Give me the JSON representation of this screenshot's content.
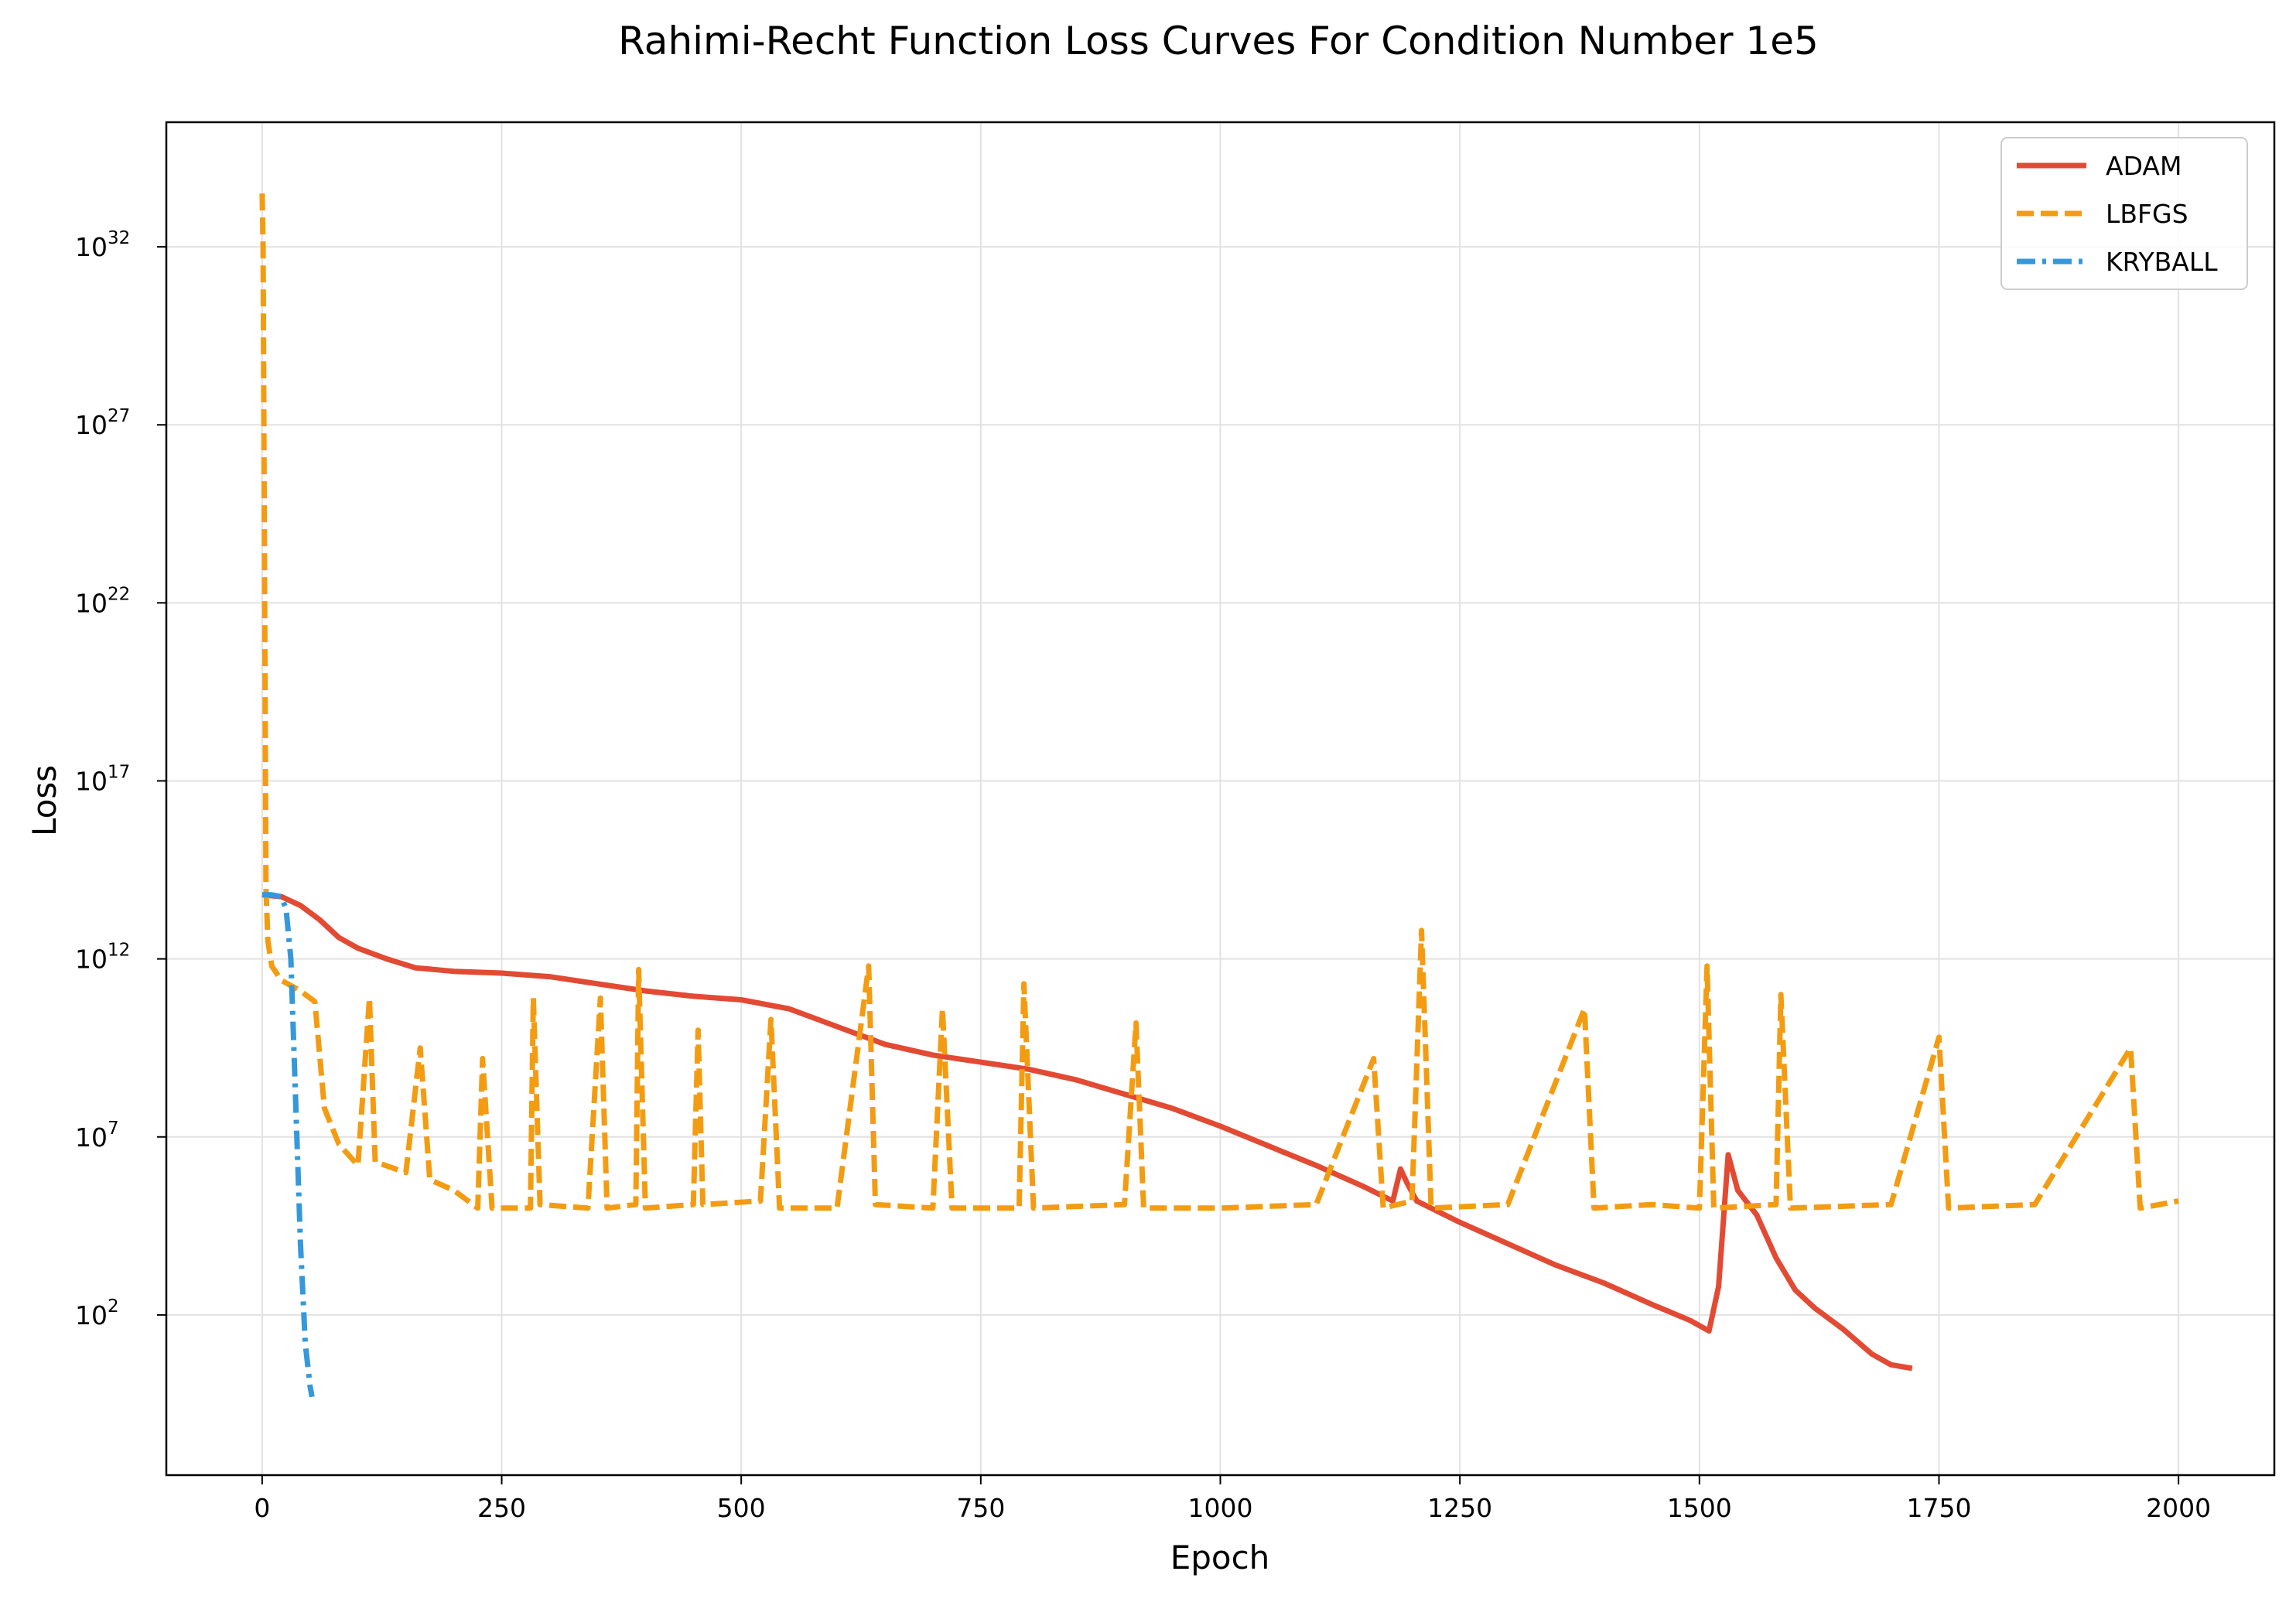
{
  "chart_data": {
    "type": "line",
    "title": "Rahimi-Recht Function Loss Curves For Condition Number 1e5",
    "xlabel": "Epoch",
    "ylabel": "Loss",
    "yscale": "log",
    "xlim": [
      -100,
      2100
    ],
    "ylim_exponent": [
      -2.5,
      35.5
    ],
    "x_ticks": [
      0,
      250,
      500,
      750,
      1000,
      1250,
      1500,
      1750,
      2000
    ],
    "y_ticks": [
      {
        "base": "10",
        "exp": "32",
        "value_exp": 32
      },
      {
        "base": "10",
        "exp": "27",
        "value_exp": 27
      },
      {
        "base": "10",
        "exp": "22",
        "value_exp": 22
      },
      {
        "base": "10",
        "exp": "17",
        "value_exp": 17
      },
      {
        "base": "10",
        "exp": "12",
        "value_exp": 12
      },
      {
        "base": "10",
        "exp": "7",
        "value_exp": 7
      },
      {
        "base": "10",
        "exp": "2",
        "value_exp": 2
      }
    ],
    "grid": true,
    "legend_position": "top-right",
    "series": [
      {
        "name": "ADAM",
        "color": "#e24a33",
        "dash": "solid",
        "log10_points": [
          [
            0,
            13.8
          ],
          [
            20,
            13.75
          ],
          [
            40,
            13.5
          ],
          [
            60,
            13.1
          ],
          [
            80,
            12.6
          ],
          [
            100,
            12.3
          ],
          [
            130,
            12.0
          ],
          [
            160,
            11.75
          ],
          [
            200,
            11.65
          ],
          [
            250,
            11.6
          ],
          [
            300,
            11.5
          ],
          [
            350,
            11.3
          ],
          [
            400,
            11.1
          ],
          [
            450,
            10.95
          ],
          [
            500,
            10.85
          ],
          [
            550,
            10.6
          ],
          [
            600,
            10.1
          ],
          [
            650,
            9.6
          ],
          [
            700,
            9.3
          ],
          [
            750,
            9.1
          ],
          [
            800,
            8.9
          ],
          [
            850,
            8.6
          ],
          [
            900,
            8.2
          ],
          [
            950,
            7.8
          ],
          [
            1000,
            7.3
          ],
          [
            1050,
            6.75
          ],
          [
            1100,
            6.2
          ],
          [
            1150,
            5.6
          ],
          [
            1180,
            5.2
          ],
          [
            1188,
            6.1
          ],
          [
            1195,
            5.7
          ],
          [
            1205,
            5.2
          ],
          [
            1250,
            4.6
          ],
          [
            1300,
            4.0
          ],
          [
            1350,
            3.4
          ],
          [
            1400,
            2.9
          ],
          [
            1450,
            2.3
          ],
          [
            1490,
            1.85
          ],
          [
            1510,
            1.55
          ],
          [
            1520,
            2.8
          ],
          [
            1530,
            6.5
          ],
          [
            1540,
            5.5
          ],
          [
            1560,
            4.8
          ],
          [
            1580,
            3.6
          ],
          [
            1600,
            2.7
          ],
          [
            1620,
            2.2
          ],
          [
            1650,
            1.6
          ],
          [
            1680,
            0.9
          ],
          [
            1700,
            0.6
          ],
          [
            1722,
            0.5
          ]
        ]
      },
      {
        "name": "LBFGS",
        "color": "#f39c12",
        "dash": "dashed",
        "log10_points": [
          [
            0,
            33.5
          ],
          [
            1,
            32
          ],
          [
            2,
            26
          ],
          [
            3,
            20
          ],
          [
            4,
            14
          ],
          [
            6,
            12.5
          ],
          [
            10,
            11.8
          ],
          [
            20,
            11.4
          ],
          [
            40,
            11.1
          ],
          [
            55,
            10.8
          ],
          [
            65,
            7.8
          ],
          [
            80,
            6.8
          ],
          [
            100,
            6.2
          ],
          [
            112,
            10.9
          ],
          [
            118,
            6.3
          ],
          [
            150,
            6.0
          ],
          [
            165,
            9.5
          ],
          [
            175,
            5.8
          ],
          [
            200,
            5.5
          ],
          [
            225,
            5.0
          ],
          [
            230,
            9.2
          ],
          [
            240,
            5.0
          ],
          [
            280,
            5.0
          ],
          [
            283,
            10.9
          ],
          [
            290,
            5.1
          ],
          [
            340,
            5.0
          ],
          [
            353,
            10.9
          ],
          [
            360,
            5.0
          ],
          [
            390,
            5.1
          ],
          [
            393,
            11.7
          ],
          [
            400,
            5.0
          ],
          [
            450,
            5.1
          ],
          [
            455,
            10.0
          ],
          [
            460,
            5.1
          ],
          [
            520,
            5.2
          ],
          [
            531,
            10.3
          ],
          [
            540,
            5.0
          ],
          [
            600,
            5.0
          ],
          [
            633,
            11.8
          ],
          [
            640,
            5.1
          ],
          [
            700,
            5.0
          ],
          [
            710,
            10.6
          ],
          [
            720,
            5.0
          ],
          [
            790,
            5.0
          ],
          [
            795,
            11.3
          ],
          [
            805,
            5.0
          ],
          [
            900,
            5.1
          ],
          [
            912,
            10.2
          ],
          [
            920,
            5.0
          ],
          [
            1000,
            5.0
          ],
          [
            1100,
            5.1
          ],
          [
            1160,
            9.2
          ],
          [
            1170,
            5.0
          ],
          [
            1200,
            5.2
          ],
          [
            1210,
            12.8
          ],
          [
            1220,
            5.0
          ],
          [
            1300,
            5.1
          ],
          [
            1380,
            10.6
          ],
          [
            1390,
            5.0
          ],
          [
            1450,
            5.1
          ],
          [
            1500,
            5.0
          ],
          [
            1508,
            11.8
          ],
          [
            1515,
            5.0
          ],
          [
            1580,
            5.1
          ],
          [
            1585,
            11.0
          ],
          [
            1595,
            5.0
          ],
          [
            1700,
            5.1
          ],
          [
            1750,
            9.8
          ],
          [
            1760,
            5.0
          ],
          [
            1850,
            5.1
          ],
          [
            1950,
            9.5
          ],
          [
            1960,
            5.0
          ],
          [
            2000,
            5.2
          ]
        ]
      },
      {
        "name": "KRYBALL",
        "color": "#3498db",
        "dash": "dashdot",
        "log10_points": [
          [
            0,
            13.8
          ],
          [
            10,
            13.8
          ],
          [
            20,
            13.75
          ],
          [
            25,
            13.4
          ],
          [
            30,
            12.0
          ],
          [
            35,
            8.0
          ],
          [
            40,
            4.0
          ],
          [
            45,
            1.2
          ],
          [
            50,
            0.0
          ],
          [
            52,
            -0.3
          ]
        ]
      }
    ]
  }
}
